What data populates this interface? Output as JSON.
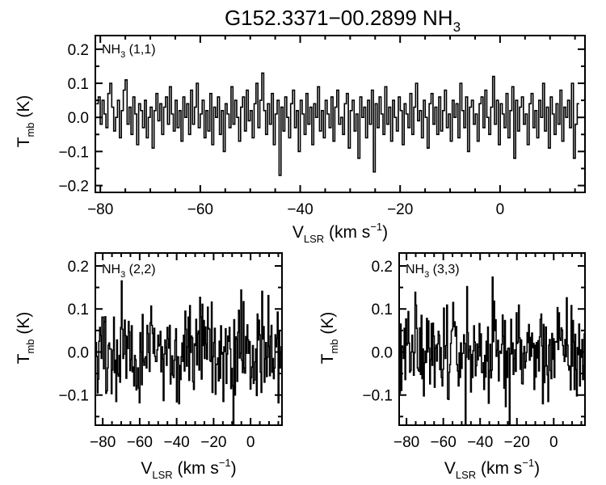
{
  "figure": {
    "title_main": "G152.3371−00.2899 NH",
    "title_sub": "3"
  },
  "colors": {
    "line": "#000000",
    "background": "#ffffff"
  },
  "chart_data": [
    {
      "type": "line",
      "style": "histogram-step",
      "label_main": "NH",
      "label_sub": "3",
      "label_tail": " (1,1)",
      "xlabel_main": "V",
      "xlabel_sub": "LSR",
      "xlabel_units": " (km s",
      "xlabel_sup": "−1",
      "xlabel_close": ")",
      "ylabel_main": "T",
      "ylabel_sub": "mb",
      "ylabel_units": " (K)",
      "xlim": [
        -81,
        17
      ],
      "ylim": [
        -0.22,
        0.24
      ],
      "xticks": [
        -80,
        -60,
        -40,
        -20,
        0
      ],
      "xtick_labels": [
        "−80",
        "−60",
        "−40",
        "−20",
        "0"
      ],
      "yticks": [
        -0.2,
        -0.1,
        0.0,
        0.1,
        0.2
      ],
      "ytick_labels": [
        "−0.2",
        "−0.1",
        "0.0",
        "0.1",
        "0.2"
      ],
      "x_start": -80.8,
      "x_step": 0.385,
      "noise_sigma": 0.052,
      "y": [
        0.04,
        0.06,
        -0.02,
        0.05,
        0.01,
        -0.03,
        0.07,
        0.1,
        0.03,
        -0.04,
        0.0,
        0.05,
        -0.06,
        0.02,
        0.08,
        0.11,
        -0.02,
        0.03,
        -0.05,
        0.06,
        0.01,
        -0.08,
        0.04,
        0.02,
        -0.03,
        0.05,
        -0.06,
        0.0,
        0.03,
        -0.09,
        0.02,
        0.07,
        -0.01,
        0.04,
        -0.05,
        0.03,
        0.06,
        -0.02,
        0.09,
        0.01,
        -0.04,
        0.05,
        -0.03,
        0.02,
        -0.07,
        0.06,
        0.0,
        0.04,
        -0.05,
        0.08,
        -0.02,
        0.03,
        0.1,
        -0.03,
        0.01,
        0.05,
        -0.06,
        0.02,
        -0.04,
        0.07,
        -0.08,
        0.03,
        0.0,
        0.06,
        -0.05,
        0.02,
        -0.1,
        0.04,
        0.01,
        -0.03,
        0.09,
        -0.02,
        0.05,
        0.0,
        -0.07,
        0.03,
        0.06,
        -0.04,
        0.08,
        -0.01,
        0.02,
        -0.06,
        0.04,
        0.1,
        -0.03,
        0.05,
        0.13,
        0.02,
        -0.05,
        0.04,
        -0.02,
        0.07,
        -0.08,
        0.01,
        0.05,
        -0.17,
        0.03,
        -0.04,
        0.06,
        0.0,
        -0.06,
        0.04,
        0.08,
        -0.03,
        0.02,
        -0.1,
        0.05,
        0.01,
        -0.05,
        0.07,
        -0.02,
        0.03,
        -0.08,
        0.04,
        0.0,
        0.09,
        -0.04,
        0.02,
        -0.06,
        0.05,
        0.01,
        -0.03,
        0.06,
        -0.07,
        0.03,
        0.08,
        -0.02,
        0.0,
        -0.05,
        0.04,
        0.07,
        -0.09,
        0.02,
        0.05,
        -0.04,
        0.01,
        -0.12,
        0.06,
        0.0,
        0.03,
        -0.06,
        0.05,
        -0.02,
        0.08,
        -0.16,
        0.04,
        -0.03,
        0.06,
        0.01,
        -0.05,
        0.09,
        -0.02,
        0.03,
        -0.07,
        0.05,
        0.0,
        -0.04,
        0.06,
        0.02,
        -0.08,
        0.04,
        0.01,
        -0.03,
        0.07,
        -0.05,
        0.03,
        0.1,
        -0.01,
        0.02,
        -0.06,
        0.05,
        0.0,
        -0.09,
        0.04,
        0.07,
        -0.02,
        0.03,
        -0.05,
        0.06,
        -0.04,
        0.02,
        0.08,
        -0.03,
        0.01,
        -0.07,
        0.05,
        0.0,
        0.04,
        -0.06,
        0.1,
        0.02,
        -0.03,
        0.06,
        -0.1,
        0.03,
        0.05,
        -0.02,
        0.01,
        -0.07,
        0.04,
        0.06,
        -0.03,
        0.08,
        0.0,
        -0.05,
        0.03,
        0.12,
        -0.02,
        0.05,
        -0.08,
        0.04,
        0.01,
        -0.03,
        0.07,
        -0.06,
        0.02,
        0.09,
        -0.12,
        0.05,
        -0.04,
        0.03,
        0.06,
        -0.02,
        0.01,
        -0.08,
        0.04,
        0.07,
        -0.03,
        0.02,
        -0.06,
        0.05,
        0.0,
        0.1,
        -0.04,
        0.03,
        -0.09,
        0.06,
        0.01,
        -0.05,
        0.04,
        -0.02,
        0.08,
        -0.07,
        0.03,
        0.0,
        0.05,
        -0.03,
        0.1,
        -0.12,
        -0.02,
        0.04
      ]
    },
    {
      "type": "line",
      "style": "histogram-step",
      "label_main": "NH",
      "label_sub": "3",
      "label_tail": " (2,2)",
      "xlabel_main": "V",
      "xlabel_sub": "LSR",
      "xlabel_units": " (km s",
      "xlabel_sup": "−1",
      "xlabel_close": ")",
      "ylabel_main": "T",
      "ylabel_sub": "mb",
      "ylabel_units": " (K)",
      "xlim": [
        -84,
        17
      ],
      "ylim": [
        -0.17,
        0.23
      ],
      "xticks": [
        -80,
        -60,
        -40,
        -20,
        0
      ],
      "xtick_labels": [
        "−80",
        "−60",
        "−40",
        "−20",
        "0"
      ],
      "yticks": [
        -0.1,
        0.0,
        0.1,
        0.2
      ],
      "ytick_labels": [
        "−0.1",
        "0.0",
        "0.1",
        "0.2"
      ],
      "x_start": -83.8,
      "x_step": 0.42,
      "noise_sigma": 0.06
    },
    {
      "type": "line",
      "style": "histogram-step",
      "label_main": "NH",
      "label_sub": "3",
      "label_tail": " (3,3)",
      "xlabel_main": "V",
      "xlabel_sub": "LSR",
      "xlabel_units": " (km s",
      "xlabel_sup": "−1",
      "xlabel_close": ")",
      "ylabel_main": "T",
      "ylabel_sub": "mb",
      "ylabel_units": " (K)",
      "xlim": [
        -84,
        17
      ],
      "ylim": [
        -0.17,
        0.23
      ],
      "xticks": [
        -80,
        -60,
        -40,
        -20,
        0
      ],
      "xtick_labels": [
        "−80",
        "−60",
        "−40",
        "−20",
        "0"
      ],
      "yticks": [
        -0.1,
        0.0,
        0.1,
        0.2
      ],
      "ytick_labels": [
        "−0.1",
        "0.0",
        "0.1",
        "0.2"
      ],
      "x_start": -83.8,
      "x_step": 0.42,
      "noise_sigma": 0.06
    }
  ]
}
